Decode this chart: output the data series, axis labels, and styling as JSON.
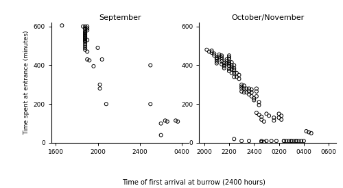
{
  "title_left": "September",
  "title_right": "October/November",
  "ylabel": "Time spent at entrance (minutes)",
  "xlabel": "Time of first arrival at burrow (2400 hours)",
  "ylim": [
    0,
    620
  ],
  "yticks": [
    0,
    200,
    400,
    600
  ],
  "xtick_vals_left": [
    1600,
    2000,
    2400,
    2800
  ],
  "xtick_labels_left": [
    "1600",
    "2000",
    "2400",
    "0400"
  ],
  "xtick_vals_right": [
    2000,
    2200,
    2400,
    2600,
    2800,
    3000
  ],
  "xtick_labels_right": [
    "2000",
    "2200",
    "2400",
    "0200",
    "0400",
    "0600"
  ],
  "sep_x": [
    1660,
    1860,
    1880,
    1880,
    1880,
    1880,
    1880,
    1880,
    1880,
    1880,
    1880,
    1880,
    1880,
    1880,
    1880,
    1880,
    1880,
    1880,
    1880,
    1880,
    1880,
    1900,
    1900,
    1900,
    1900,
    1900,
    1900,
    1920,
    1960,
    2000,
    2020,
    2020,
    2040,
    2080,
    2500,
    2500,
    2600,
    2640,
    2660,
    2600,
    2740,
    2760
  ],
  "sep_y": [
    605,
    600,
    600,
    590,
    585,
    575,
    570,
    565,
    560,
    555,
    550,
    545,
    540,
    535,
    530,
    525,
    520,
    510,
    500,
    490,
    480,
    600,
    590,
    580,
    530,
    470,
    430,
    425,
    395,
    490,
    300,
    280,
    430,
    200,
    400,
    200,
    100,
    115,
    110,
    40,
    115,
    110
  ],
  "oct_x": [
    2020,
    2040,
    2060,
    2060,
    2080,
    2080,
    2100,
    2100,
    2100,
    2100,
    2100,
    2120,
    2120,
    2140,
    2140,
    2140,
    2140,
    2140,
    2160,
    2160,
    2160,
    2160,
    2180,
    2180,
    2180,
    2200,
    2200,
    2200,
    2200,
    2200,
    2200,
    2200,
    2200,
    2220,
    2220,
    2220,
    2220,
    2220,
    2240,
    2240,
    2240,
    2240,
    2240,
    2240,
    2260,
    2260,
    2280,
    2280,
    2300,
    2300,
    2300,
    2300,
    2300,
    2320,
    2320,
    2320,
    2340,
    2340,
    2360,
    2360,
    2360,
    2360,
    2380,
    2380,
    2380,
    2400,
    2400,
    2420,
    2420,
    2420,
    2440,
    2440,
    2460,
    2460,
    2480,
    2420,
    2440,
    2460,
    2460,
    2480,
    2500,
    2500,
    2520,
    2540,
    2560,
    2560,
    2580,
    2600,
    2600,
    2620,
    2620,
    2640,
    2640,
    2660,
    2680,
    2700,
    2700,
    2720,
    2740,
    2740,
    2760,
    2780,
    2800,
    2820,
    2840,
    2860
  ],
  "oct_y": [
    480,
    470,
    465,
    475,
    450,
    460,
    440,
    435,
    430,
    420,
    410,
    455,
    445,
    450,
    440,
    430,
    420,
    405,
    410,
    400,
    395,
    385,
    430,
    420,
    410,
    450,
    440,
    430,
    415,
    405,
    395,
    380,
    370,
    415,
    400,
    390,
    380,
    360,
    400,
    385,
    375,
    360,
    340,
    20,
    360,
    340,
    350,
    330,
    300,
    290,
    280,
    265,
    10,
    295,
    280,
    260,
    280,
    260,
    280,
    265,
    250,
    10,
    275,
    260,
    240,
    230,
    220,
    280,
    265,
    240,
    210,
    195,
    10,
    5,
    5,
    155,
    145,
    135,
    120,
    110,
    150,
    10,
    140,
    10,
    130,
    115,
    10,
    150,
    130,
    140,
    120,
    10,
    10,
    10,
    10,
    10,
    10,
    10,
    10,
    10,
    10,
    10,
    10,
    60,
    55,
    50
  ]
}
